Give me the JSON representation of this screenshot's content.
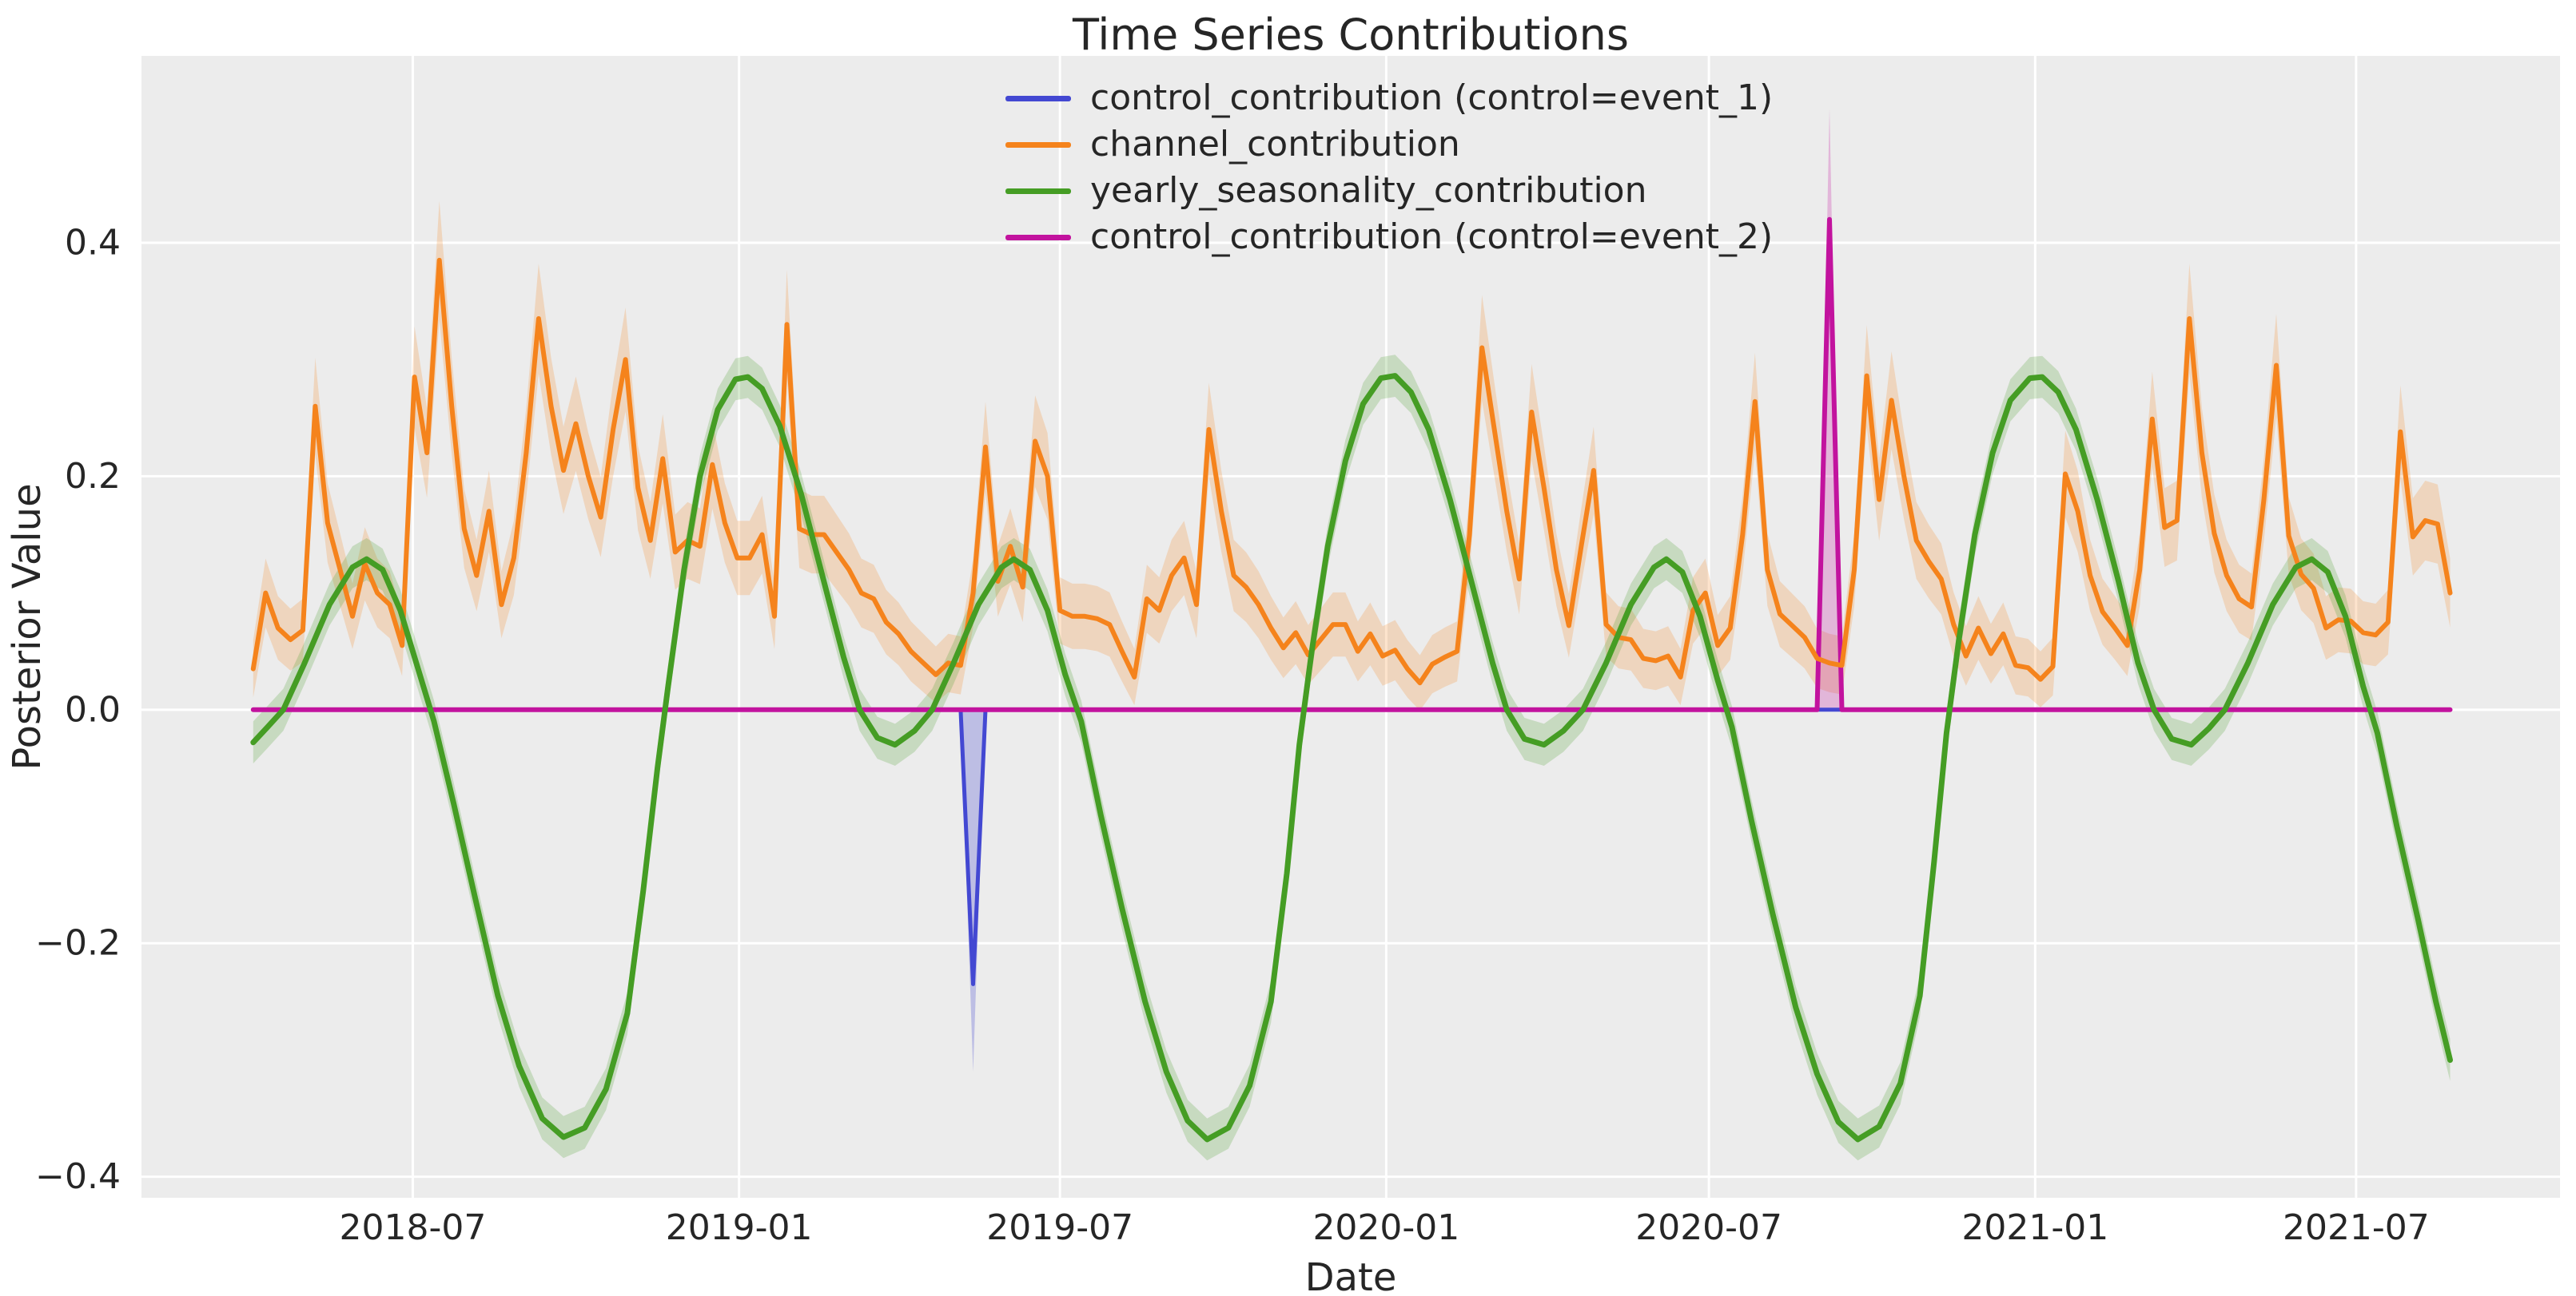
{
  "title": "Time Series Contributions",
  "axes": {
    "x_label": "Date",
    "y_label": "Posterior Value",
    "text_color": "#262626",
    "plot_background": "#ececec",
    "grid_color": "#ffffff"
  },
  "legend": {
    "items": [
      {
        "label": "control_contribution (control=event_1)",
        "color": "#4348d2"
      },
      {
        "label": "channel_contribution",
        "color": "#f5831c"
      },
      {
        "label": "yearly_seasonality_contribution",
        "color": "#459d24"
      },
      {
        "label": "control_contribution (control=event_2)",
        "color": "#c2139e"
      }
    ]
  },
  "chart_data": {
    "type": "line",
    "title": "Time Series Contributions",
    "xlabel": "Date",
    "ylabel": "Posterior Value",
    "grid": true,
    "legend_position": "top-center",
    "ylim": [
      -0.418,
      0.56
    ],
    "xlim_dates": [
      "2018-01-29",
      "2021-10-24"
    ],
    "y_ticks": [
      {
        "value": 0.4,
        "label": "0.4"
      },
      {
        "value": 0.2,
        "label": "0.2"
      },
      {
        "value": 0.0,
        "label": "0.0"
      },
      {
        "value": -0.2,
        "label": "−0.2"
      },
      {
        "value": -0.4,
        "label": "−0.4"
      }
    ],
    "x_ticks": [
      {
        "date": "2018-07-01",
        "label": "2018-07"
      },
      {
        "date": "2019-01-01",
        "label": "2019-01"
      },
      {
        "date": "2019-07-01",
        "label": "2019-07"
      },
      {
        "date": "2020-01-01",
        "label": "2020-01"
      },
      {
        "date": "2020-07-01",
        "label": "2020-07"
      },
      {
        "date": "2021-01-01",
        "label": "2021-01"
      },
      {
        "date": "2021-07-01",
        "label": "2021-07"
      }
    ],
    "series": [
      {
        "name": "channel_contribution",
        "color": "#f5831c",
        "band_fill": "rgba(245,131,28,0.22)",
        "line_width": 6,
        "x_start_date": "2018-04-02",
        "x_step_days": 7,
        "band_rule": {
          "base": 0.022,
          "scale": 0.075
        },
        "values": [
          0.035,
          0.1,
          0.07,
          0.06,
          0.068,
          0.26,
          0.16,
          0.12,
          0.08,
          0.125,
          0.1,
          0.09,
          0.055,
          0.285,
          0.22,
          0.385,
          0.26,
          0.155,
          0.115,
          0.17,
          0.09,
          0.13,
          0.22,
          0.335,
          0.26,
          0.205,
          0.245,
          0.2,
          0.165,
          0.24,
          0.3,
          0.19,
          0.145,
          0.215,
          0.135,
          0.145,
          0.14,
          0.21,
          0.16,
          0.13,
          0.13,
          0.15,
          0.08,
          0.33,
          0.155,
          0.15,
          0.15,
          0.135,
          0.12,
          0.1,
          0.095,
          0.075,
          0.065,
          0.05,
          0.04,
          0.03,
          0.04,
          0.038,
          0.1,
          0.225,
          0.11,
          0.14,
          0.105,
          0.23,
          0.2,
          0.085,
          0.08,
          0.08,
          0.078,
          0.073,
          0.05,
          0.028,
          0.095,
          0.085,
          0.115,
          0.13,
          0.09,
          0.24,
          0.17,
          0.115,
          0.105,
          0.09,
          0.07,
          0.053,
          0.066,
          0.047,
          0.06,
          0.073,
          0.073,
          0.05,
          0.065,
          0.046,
          0.051,
          0.035,
          0.023,
          0.039,
          0.045,
          0.05,
          0.15,
          0.31,
          0.24,
          0.17,
          0.112,
          0.255,
          0.19,
          0.12,
          0.072,
          0.14,
          0.205,
          0.073,
          0.062,
          0.06,
          0.044,
          0.042,
          0.046,
          0.028,
          0.085,
          0.1,
          0.055,
          0.07,
          0.15,
          0.264,
          0.12,
          0.082,
          0.072,
          0.062,
          0.044,
          0.04,
          0.038,
          0.12,
          0.286,
          0.18,
          0.265,
          0.2,
          0.145,
          0.127,
          0.112,
          0.073,
          0.046,
          0.07,
          0.048,
          0.065,
          0.038,
          0.036,
          0.026,
          0.037,
          0.202,
          0.17,
          0.115,
          0.084,
          0.07,
          0.055,
          0.12,
          0.249,
          0.156,
          0.162,
          0.335,
          0.22,
          0.151,
          0.115,
          0.095,
          0.088,
          0.18,
          0.295,
          0.149,
          0.116,
          0.104,
          0.07,
          0.077,
          0.076,
          0.066,
          0.064,
          0.075,
          0.238,
          0.148,
          0.162,
          0.159,
          0.1
        ]
      },
      {
        "name": "yearly_seasonality_contribution",
        "color": "#459d24",
        "band_fill": "rgba(69,157,36,0.22)",
        "line_width": 7,
        "band_half": 0.018,
        "points": [
          [
            "2018-04-02",
            -0.028
          ],
          [
            "2018-04-10",
            -0.015
          ],
          [
            "2018-04-19",
            0
          ],
          [
            "2018-05-01",
            0.04
          ],
          [
            "2018-05-15",
            0.09
          ],
          [
            "2018-05-28",
            0.122
          ],
          [
            "2018-06-05",
            0.129
          ],
          [
            "2018-06-14",
            0.12
          ],
          [
            "2018-06-24",
            0.085
          ],
          [
            "2018-07-04",
            0.035
          ],
          [
            "2018-07-13",
            -0.01
          ],
          [
            "2018-07-24",
            -0.08
          ],
          [
            "2018-08-05",
            -0.16
          ],
          [
            "2018-08-18",
            -0.245
          ],
          [
            "2018-08-30",
            -0.305
          ],
          [
            "2018-09-12",
            -0.35
          ],
          [
            "2018-09-24",
            -0.366
          ],
          [
            "2018-10-06",
            -0.358
          ],
          [
            "2018-10-18",
            -0.325
          ],
          [
            "2018-10-30",
            -0.26
          ],
          [
            "2018-11-08",
            -0.155
          ],
          [
            "2018-11-16",
            -0.05
          ],
          [
            "2018-11-22",
            0.02
          ],
          [
            "2018-12-01",
            0.12
          ],
          [
            "2018-12-10",
            0.2
          ],
          [
            "2018-12-20",
            0.257
          ],
          [
            "2018-12-30",
            0.283
          ],
          [
            "2019-01-06",
            0.285
          ],
          [
            "2019-01-14",
            0.275
          ],
          [
            "2019-01-24",
            0.243
          ],
          [
            "2019-02-05",
            0.185
          ],
          [
            "2019-02-17",
            0.115
          ],
          [
            "2019-03-01",
            0.045
          ],
          [
            "2019-03-10",
            0
          ],
          [
            "2019-03-20",
            -0.024
          ],
          [
            "2019-03-30",
            -0.03
          ],
          [
            "2019-04-10",
            -0.018
          ],
          [
            "2019-04-20",
            0
          ],
          [
            "2019-05-02",
            0.04
          ],
          [
            "2019-05-16",
            0.09
          ],
          [
            "2019-05-29",
            0.122
          ],
          [
            "2019-06-05",
            0.129
          ],
          [
            "2019-06-14",
            0.12
          ],
          [
            "2019-06-24",
            0.085
          ],
          [
            "2019-07-04",
            0.03
          ],
          [
            "2019-07-13",
            -0.01
          ],
          [
            "2019-07-24",
            -0.09
          ],
          [
            "2019-08-05",
            -0.17
          ],
          [
            "2019-08-18",
            -0.25
          ],
          [
            "2019-08-30",
            -0.31
          ],
          [
            "2019-09-11",
            -0.352
          ],
          [
            "2019-09-22",
            -0.368
          ],
          [
            "2019-10-04",
            -0.358
          ],
          [
            "2019-10-16",
            -0.322
          ],
          [
            "2019-10-28",
            -0.25
          ],
          [
            "2019-11-06",
            -0.14
          ],
          [
            "2019-11-13",
            -0.03
          ],
          [
            "2019-11-20",
            0.05
          ],
          [
            "2019-11-29",
            0.14
          ],
          [
            "2019-12-09",
            0.213
          ],
          [
            "2019-12-19",
            0.262
          ],
          [
            "2019-12-29",
            0.284
          ],
          [
            "2020-01-06",
            0.286
          ],
          [
            "2020-01-15",
            0.272
          ],
          [
            "2020-01-25",
            0.24
          ],
          [
            "2020-02-06",
            0.18
          ],
          [
            "2020-02-18",
            0.11
          ],
          [
            "2020-03-01",
            0.04
          ],
          [
            "2020-03-09",
            0
          ],
          [
            "2020-03-19",
            -0.025
          ],
          [
            "2020-03-30",
            -0.03
          ],
          [
            "2020-04-10",
            -0.018
          ],
          [
            "2020-04-21",
            0
          ],
          [
            "2020-05-04",
            0.04
          ],
          [
            "2020-05-18",
            0.09
          ],
          [
            "2020-05-31",
            0.122
          ],
          [
            "2020-06-07",
            0.129
          ],
          [
            "2020-06-16",
            0.118
          ],
          [
            "2020-06-26",
            0.08
          ],
          [
            "2020-07-06",
            0.025
          ],
          [
            "2020-07-14",
            -0.015
          ],
          [
            "2020-07-25",
            -0.095
          ],
          [
            "2020-08-06",
            -0.175
          ],
          [
            "2020-08-19",
            -0.255
          ],
          [
            "2020-08-31",
            -0.312
          ],
          [
            "2020-09-12",
            -0.353
          ],
          [
            "2020-09-23",
            -0.368
          ],
          [
            "2020-10-05",
            -0.357
          ],
          [
            "2020-10-17",
            -0.32
          ],
          [
            "2020-10-28",
            -0.245
          ],
          [
            "2020-11-05",
            -0.13
          ],
          [
            "2020-11-12",
            -0.02
          ],
          [
            "2020-11-19",
            0.06
          ],
          [
            "2020-11-28",
            0.15
          ],
          [
            "2020-12-08",
            0.22
          ],
          [
            "2020-12-18",
            0.265
          ],
          [
            "2020-12-29",
            0.284
          ],
          [
            "2021-01-05",
            0.285
          ],
          [
            "2021-01-14",
            0.272
          ],
          [
            "2021-01-24",
            0.24
          ],
          [
            "2021-02-05",
            0.18
          ],
          [
            "2021-02-17",
            0.11
          ],
          [
            "2021-02-28",
            0.04
          ],
          [
            "2021-03-09",
            0
          ],
          [
            "2021-03-19",
            -0.025
          ],
          [
            "2021-03-30",
            -0.03
          ],
          [
            "2021-04-09",
            -0.016
          ],
          [
            "2021-04-18",
            0
          ],
          [
            "2021-05-01",
            0.04
          ],
          [
            "2021-05-15",
            0.09
          ],
          [
            "2021-05-28",
            0.122
          ],
          [
            "2021-06-06",
            0.129
          ],
          [
            "2021-06-15",
            0.118
          ],
          [
            "2021-06-25",
            0.08
          ],
          [
            "2021-07-05",
            0.02
          ],
          [
            "2021-07-13",
            -0.02
          ],
          [
            "2021-07-24",
            -0.1
          ],
          [
            "2021-08-05",
            -0.18
          ],
          [
            "2021-08-15",
            -0.25
          ],
          [
            "2021-08-23",
            -0.3
          ]
        ]
      },
      {
        "name": "control_contribution (control=event_1)",
        "color": "#4348d2",
        "band_fill": "rgba(67,72,210,0.28)",
        "line_width": 5,
        "points": [
          [
            "2018-04-02",
            0
          ],
          [
            "2019-05-06",
            0
          ],
          [
            "2019-05-13",
            -0.235
          ],
          [
            "2019-05-20",
            0
          ],
          [
            "2021-08-23",
            0
          ]
        ],
        "band_polygon": [
          [
            "2019-05-06",
            0
          ],
          [
            "2019-05-13",
            -0.31
          ],
          [
            "2019-05-20",
            0
          ]
        ],
        "event_date": "2019-05-13",
        "event_value": -0.235,
        "event_band_low": -0.31
      },
      {
        "name": "control_contribution (control=event_2)",
        "color": "#c2139e",
        "band_fill": "rgba(194,19,158,0.25)",
        "line_width": 6,
        "points": [
          [
            "2018-04-02",
            0
          ],
          [
            "2020-08-31",
            0
          ],
          [
            "2020-09-07",
            0.42
          ],
          [
            "2020-09-14",
            0
          ],
          [
            "2021-08-23",
            0
          ]
        ],
        "band_polygon": [
          [
            "2020-08-31",
            0
          ],
          [
            "2020-09-07",
            0.515
          ],
          [
            "2020-09-14",
            0
          ]
        ],
        "event_date": "2020-09-07",
        "event_value": 0.42,
        "event_band_high": 0.515
      }
    ]
  }
}
